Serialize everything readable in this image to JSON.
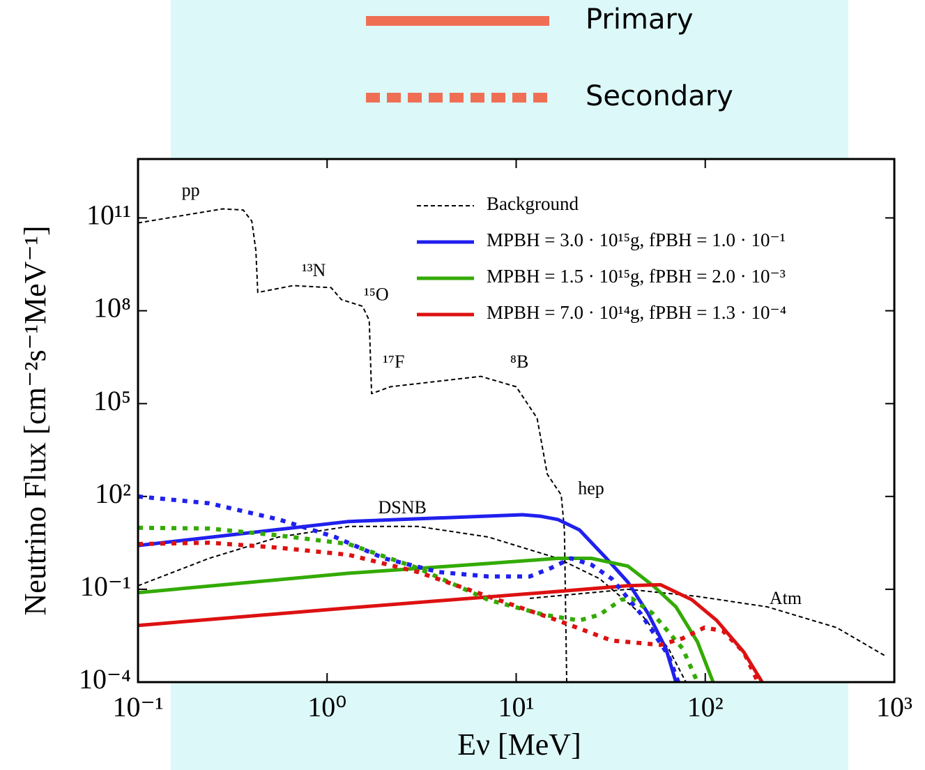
{
  "chart_data": {
    "type": "line",
    "x_label": "Eν [MeV]",
    "y_label": "Neutrino Flux [cm⁻²s⁻¹MeV⁻¹]",
    "xscale": "log",
    "yscale": "log",
    "xlim": [
      0.1,
      1000
    ],
    "ylim": [
      0.0001,
      8000000000000.0
    ],
    "xticks": [
      {
        "value": 0.1,
        "label": "10⁻¹"
      },
      {
        "value": 1,
        "label": "10⁰"
      },
      {
        "value": 10,
        "label": "10¹"
      },
      {
        "value": 100,
        "label": "10²"
      },
      {
        "value": 1000,
        "label": "10³"
      }
    ],
    "yticks": [
      {
        "value": 0.0001,
        "label": "10⁻⁴"
      },
      {
        "value": 0.1,
        "label": "10⁻¹"
      },
      {
        "value": 100,
        "label": "10²"
      },
      {
        "value": 100000,
        "label": "10⁵"
      },
      {
        "value": 100000000,
        "label": "10⁸"
      },
      {
        "value": 100000000000,
        "label": "10¹¹"
      }
    ],
    "legend": "upper right",
    "style_legend": {
      "color": "#ef6f55",
      "entries": [
        {
          "label": "Primary",
          "style": "solid"
        },
        {
          "label": "Secondary",
          "style": "dotted"
        }
      ]
    },
    "series": [
      {
        "name": "Background",
        "color": "#000000",
        "style": "dashed",
        "x": [
          0.1,
          0.28,
          0.36,
          0.4,
          0.42,
          0.43,
          0.66,
          1.05,
          1.19,
          1.54,
          1.67,
          1.72,
          2.16,
          6.5,
          10,
          12.9,
          14.6,
          15.9,
          17.3,
          18.0,
          18.5,
          null,
          0.1,
          0.238,
          0.556,
          1.3,
          3.03,
          7.1,
          16.6,
          27.6,
          45.7,
          64,
          79,
          null,
          11.8,
          39,
          91,
          213,
          495,
          890
        ],
        "values": [
          69000000000.0,
          196000000000.0,
          180000000000.0,
          78000000000.0,
          8700000000.0,
          390000000.0,
          650000000.0,
          560000000.0,
          230000000.0,
          140000000.0,
          49000000.0,
          210000.0,
          350000.0,
          760000.0,
          350000.0,
          34000.0,
          525,
          240,
          112,
          8.3,
          0.0001,
          null,
          0.13,
          1.0,
          4.9,
          10.7,
          10.7,
          4.9,
          1.0,
          0.22,
          0.016,
          0.0012,
          0.0001,
          null,
          0.051,
          0.1,
          0.059,
          0.027,
          0.0058,
          0.00072
        ]
      },
      {
        "name": "MPBH = 3.0 · 10¹⁵g, fPBH = 1.0 · 10⁻¹",
        "color": "#2020ee",
        "style": "solid",
        "x": [
          0.1,
          1.3,
          10.8,
          13.4,
          16.6,
          21.6,
          30,
          39,
          50,
          62,
          70
        ],
        "values": [
          2.6,
          15.5,
          25.7,
          23,
          18,
          8.3,
          1.0,
          0.17,
          0.016,
          0.0012,
          0.0001
        ]
      },
      {
        "name": "MPBH = 1.5 · 10¹⁵g, fPBH = 2.0 · 10⁻³",
        "color": "#33aa00",
        "style": "solid",
        "x": [
          0.1,
          1.3,
          7.1,
          16.6,
          25,
          39,
          53,
          70,
          91,
          110
        ],
        "values": [
          0.078,
          0.33,
          0.68,
          1.0,
          1.0,
          0.56,
          0.13,
          0.027,
          0.002,
          0.0001
        ]
      },
      {
        "name": "MPBH = 7.0 · 10¹⁴g, fPBH = 1.3 · 10⁻⁴",
        "color": "#dd1111",
        "style": "solid",
        "x": [
          0.1,
          1.3,
          16.6,
          39,
          58,
          85,
          115,
          160,
          200
        ],
        "values": [
          0.0068,
          0.025,
          0.085,
          0.13,
          0.14,
          0.046,
          0.0098,
          0.00093,
          0.0001
        ]
      },
      {
        "color": "#2020ee",
        "style": "dotted",
        "x": [
          0.1,
          0.238,
          0.556,
          1.1,
          2.0,
          3.9,
          7.1,
          11.8,
          15.2,
          19.5,
          25,
          32,
          45.7,
          64,
          72
        ],
        "values": [
          100,
          60,
          18,
          4.9,
          1.0,
          0.36,
          0.26,
          0.26,
          0.48,
          1.0,
          0.62,
          0.22,
          0.016,
          0.00072,
          0.0001
        ]
      },
      {
        "color": "#33aa00",
        "style": "dotted",
        "x": [
          0.1,
          0.238,
          0.556,
          1.3,
          3.03,
          7.1,
          14,
          21.6,
          27.6,
          36,
          41,
          53,
          76,
          91
        ],
        "values": [
          9.7,
          9.2,
          5.5,
          2.9,
          0.48,
          0.046,
          0.015,
          0.0098,
          0.015,
          0.046,
          0.05,
          0.016,
          0.0012,
          0.0001
        ]
      },
      {
        "color": "#dd1111",
        "style": "dotted",
        "x": [
          0.1,
          0.238,
          0.556,
          1.3,
          3.03,
          7.1,
          16.6,
          32,
          58,
          76,
          99,
          124,
          160,
          190
        ],
        "values": [
          2.9,
          3.2,
          2.2,
          1.3,
          0.36,
          0.059,
          0.0098,
          0.0022,
          0.0016,
          0.0026,
          0.0058,
          0.0045,
          0.00093,
          0.0001
        ]
      }
    ],
    "annotations": [
      {
        "text": "pp",
        "x": 0.19,
        "y": 700000000000.0
      },
      {
        "text": "¹³N",
        "x": 0.85,
        "y": 1800000000.0
      },
      {
        "text": "¹⁵O",
        "x": 1.82,
        "y": 300000000.0
      },
      {
        "text": "¹⁷F",
        "x": 2.25,
        "y": 2000000.0
      },
      {
        "text": "⁸B",
        "x": 10.4,
        "y": 2000000.0
      },
      {
        "text": "hep",
        "x": 24.9,
        "y": 160
      },
      {
        "text": "DSNB",
        "x": 2.5,
        "y": 39
      },
      {
        "text": "Atm",
        "x": 266,
        "y": 0.046
      }
    ]
  }
}
